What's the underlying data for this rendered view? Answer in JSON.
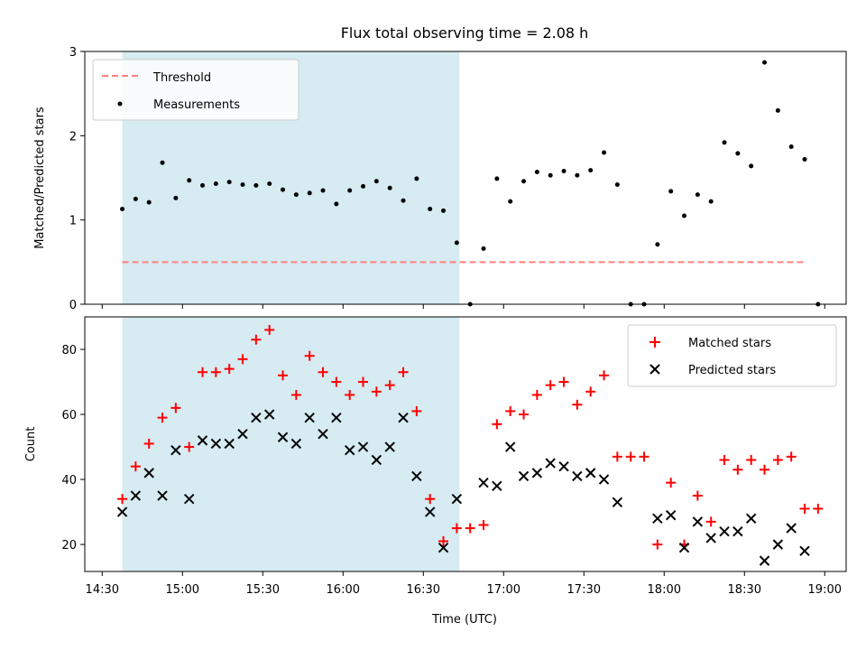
{
  "chart_data": [
    {
      "id": "ratio",
      "type": "scatter",
      "title": "Flux total observing time = 2.08 h",
      "xlabel": "",
      "ylabel": "Matched/Predicted stars",
      "ylim": [
        0,
        3
      ],
      "yticks": [
        0,
        1,
        2,
        3
      ],
      "x_unit": "minutes since 14:30 UTC",
      "xlim": [
        -6.5,
        278
      ],
      "shaded_region": {
        "x_start": 7.5,
        "x_end": 133.5,
        "color": "#add8e6"
      },
      "threshold": {
        "label": "Threshold",
        "value": 0.5,
        "x_start": 7.5,
        "x_end": 262.5,
        "color": "#ff7f7f"
      },
      "legend": {
        "position": "top-left",
        "entries": [
          "Threshold",
          "Measurements"
        ]
      },
      "series": [
        {
          "name": "Measurements",
          "color": "#000000",
          "points": [
            [
              7.5,
              1.13
            ],
            [
              12.5,
              1.25
            ],
            [
              17.5,
              1.21
            ],
            [
              22.5,
              1.68
            ],
            [
              27.5,
              1.26
            ],
            [
              32.5,
              1.47
            ],
            [
              37.5,
              1.41
            ],
            [
              42.5,
              1.43
            ],
            [
              47.5,
              1.45
            ],
            [
              52.5,
              1.42
            ],
            [
              57.5,
              1.41
            ],
            [
              62.5,
              1.43
            ],
            [
              67.5,
              1.36
            ],
            [
              72.5,
              1.3
            ],
            [
              77.5,
              1.32
            ],
            [
              82.5,
              1.35
            ],
            [
              87.5,
              1.19
            ],
            [
              92.5,
              1.35
            ],
            [
              97.5,
              1.4
            ],
            [
              102.5,
              1.46
            ],
            [
              107.5,
              1.38
            ],
            [
              112.5,
              1.23
            ],
            [
              117.5,
              1.49
            ],
            [
              122.5,
              1.13
            ],
            [
              127.5,
              1.11
            ],
            [
              132.5,
              0.73
            ],
            [
              137.5,
              0.0
            ],
            [
              142.5,
              0.66
            ],
            [
              147.5,
              1.49
            ],
            [
              152.5,
              1.22
            ],
            [
              157.5,
              1.46
            ],
            [
              162.5,
              1.57
            ],
            [
              167.5,
              1.53
            ],
            [
              172.5,
              1.58
            ],
            [
              177.5,
              1.53
            ],
            [
              182.5,
              1.59
            ],
            [
              187.5,
              1.8
            ],
            [
              192.5,
              1.42
            ],
            [
              197.5,
              0.0
            ],
            [
              202.5,
              0.0
            ],
            [
              207.5,
              0.71
            ],
            [
              212.5,
              1.34
            ],
            [
              217.5,
              1.05
            ],
            [
              222.5,
              1.3
            ],
            [
              227.5,
              1.22
            ],
            [
              232.5,
              1.92
            ],
            [
              237.5,
              1.79
            ],
            [
              242.5,
              1.64
            ],
            [
              247.5,
              2.87
            ],
            [
              252.5,
              2.3
            ],
            [
              257.5,
              1.87
            ],
            [
              262.5,
              1.72
            ],
            [
              267.5,
              0.0
            ]
          ]
        }
      ]
    },
    {
      "id": "counts",
      "type": "scatter",
      "title": "",
      "xlabel": "Time (UTC)",
      "ylabel": "Count",
      "ylim": [
        11.7,
        90
      ],
      "yticks": [
        20,
        40,
        60,
        80
      ],
      "x_unit": "minutes since 14:30 UTC",
      "xlim": [
        -6.5,
        278
      ],
      "xticks": [
        {
          "value": 0,
          "label": "14:30"
        },
        {
          "value": 30,
          "label": "15:00"
        },
        {
          "value": 60,
          "label": "15:30"
        },
        {
          "value": 90,
          "label": "16:00"
        },
        {
          "value": 120,
          "label": "16:30"
        },
        {
          "value": 150,
          "label": "17:00"
        },
        {
          "value": 180,
          "label": "17:30"
        },
        {
          "value": 210,
          "label": "18:00"
        },
        {
          "value": 240,
          "label": "18:30"
        },
        {
          "value": 270,
          "label": "19:00"
        }
      ],
      "shaded_region": {
        "x_start": 7.5,
        "x_end": 133.5,
        "color": "#add8e6"
      },
      "legend": {
        "position": "top-right",
        "entries": [
          "Matched stars",
          "Predicted stars"
        ]
      },
      "series": [
        {
          "name": "Matched stars",
          "marker": "+",
          "color": "#ff0000",
          "points": [
            [
              7.5,
              34
            ],
            [
              12.5,
              44
            ],
            [
              17.5,
              51
            ],
            [
              22.5,
              59
            ],
            [
              27.5,
              62
            ],
            [
              32.5,
              50
            ],
            [
              37.5,
              73
            ],
            [
              42.5,
              73
            ],
            [
              47.5,
              74
            ],
            [
              52.5,
              77
            ],
            [
              57.5,
              83
            ],
            [
              62.5,
              86
            ],
            [
              67.5,
              72
            ],
            [
              72.5,
              66
            ],
            [
              77.5,
              78
            ],
            [
              82.5,
              73
            ],
            [
              87.5,
              70
            ],
            [
              92.5,
              66
            ],
            [
              97.5,
              70
            ],
            [
              102.5,
              67
            ],
            [
              107.5,
              69
            ],
            [
              112.5,
              73
            ],
            [
              117.5,
              61
            ],
            [
              122.5,
              34
            ],
            [
              127.5,
              21
            ],
            [
              132.5,
              25
            ],
            [
              137.5,
              25
            ],
            [
              142.5,
              26
            ],
            [
              147.5,
              57
            ],
            [
              152.5,
              61
            ],
            [
              157.5,
              60
            ],
            [
              162.5,
              66
            ],
            [
              167.5,
              69
            ],
            [
              172.5,
              70
            ],
            [
              177.5,
              63
            ],
            [
              182.5,
              67
            ],
            [
              187.5,
              72
            ],
            [
              192.5,
              47
            ],
            [
              197.5,
              47
            ],
            [
              202.5,
              47
            ],
            [
              207.5,
              20
            ],
            [
              212.5,
              39
            ],
            [
              217.5,
              20
            ],
            [
              222.5,
              35
            ],
            [
              227.5,
              27
            ],
            [
              232.5,
              46
            ],
            [
              237.5,
              43
            ],
            [
              242.5,
              46
            ],
            [
              247.5,
              43
            ],
            [
              252.5,
              46
            ],
            [
              257.5,
              47
            ],
            [
              262.5,
              31
            ],
            [
              267.5,
              31
            ]
          ]
        },
        {
          "name": "Predicted stars",
          "marker": "x",
          "color": "#000000",
          "points": [
            [
              7.5,
              30
            ],
            [
              12.5,
              35
            ],
            [
              17.5,
              42
            ],
            [
              22.5,
              35
            ],
            [
              27.5,
              49
            ],
            [
              32.5,
              34
            ],
            [
              37.5,
              52
            ],
            [
              42.5,
              51
            ],
            [
              47.5,
              51
            ],
            [
              52.5,
              54
            ],
            [
              57.5,
              59
            ],
            [
              62.5,
              60
            ],
            [
              67.5,
              53
            ],
            [
              72.5,
              51
            ],
            [
              77.5,
              59
            ],
            [
              82.5,
              54
            ],
            [
              87.5,
              59
            ],
            [
              92.5,
              49
            ],
            [
              97.5,
              50
            ],
            [
              102.5,
              46
            ],
            [
              107.5,
              50
            ],
            [
              112.5,
              59
            ],
            [
              117.5,
              41
            ],
            [
              122.5,
              30
            ],
            [
              127.5,
              19
            ],
            [
              132.5,
              34
            ],
            [
              142.5,
              39
            ],
            [
              147.5,
              38
            ],
            [
              152.5,
              50
            ],
            [
              157.5,
              41
            ],
            [
              162.5,
              42
            ],
            [
              167.5,
              45
            ],
            [
              172.5,
              44
            ],
            [
              177.5,
              41
            ],
            [
              182.5,
              42
            ],
            [
              187.5,
              40
            ],
            [
              192.5,
              33
            ],
            [
              207.5,
              28
            ],
            [
              212.5,
              29
            ],
            [
              217.5,
              19
            ],
            [
              222.5,
              27
            ],
            [
              227.5,
              22
            ],
            [
              232.5,
              24
            ],
            [
              237.5,
              24
            ],
            [
              242.5,
              28
            ],
            [
              247.5,
              15
            ],
            [
              252.5,
              20
            ],
            [
              257.5,
              25
            ],
            [
              262.5,
              18
            ]
          ]
        }
      ]
    }
  ]
}
